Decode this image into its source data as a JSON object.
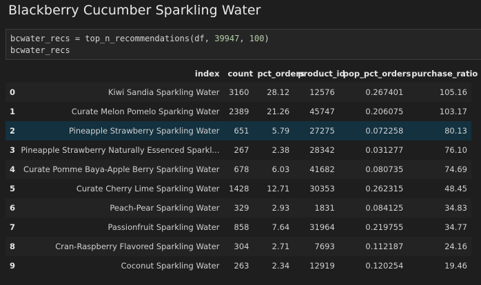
{
  "notebook": {
    "heading": "Blackberry Cucumber Sparkling Water",
    "code": {
      "line1_var": "bcwater_recs = top_n_recommendations(df, ",
      "line1_arg1": "39947",
      "line1_sep": ", ",
      "line1_arg2": "100",
      "line1_end": ")",
      "line2": "bcwater_recs"
    },
    "output": {
      "columns": [
        "",
        "index",
        "count",
        "pct_orders",
        "product_id",
        "pop_pct_orders",
        "purchase_ratio"
      ],
      "highlighted_row": 2,
      "rows": [
        {
          "i": "0",
          "index": "Kiwi Sandia Sparkling Water",
          "count": "3160",
          "pct_orders": "28.12",
          "product_id": "12576",
          "pop_pct_orders": "0.267401",
          "purchase_ratio": "105.16"
        },
        {
          "i": "1",
          "index": "Curate Melon Pomelo Sparking Water",
          "count": "2389",
          "pct_orders": "21.26",
          "product_id": "45747",
          "pop_pct_orders": "0.206075",
          "purchase_ratio": "103.17"
        },
        {
          "i": "2",
          "index": "Pineapple Strawberry Sparkling Water",
          "count": "651",
          "pct_orders": "5.79",
          "product_id": "27275",
          "pop_pct_orders": "0.072258",
          "purchase_ratio": "80.13"
        },
        {
          "i": "3",
          "index": "Pineapple Strawberry Naturally Essenced Sparkl...",
          "count": "267",
          "pct_orders": "2.38",
          "product_id": "28342",
          "pop_pct_orders": "0.031277",
          "purchase_ratio": "76.10"
        },
        {
          "i": "4",
          "index": "Curate Pomme Baya-Apple Berry Sparkling Water",
          "count": "678",
          "pct_orders": "6.03",
          "product_id": "41682",
          "pop_pct_orders": "0.080735",
          "purchase_ratio": "74.69"
        },
        {
          "i": "5",
          "index": "Curate Cherry Lime Sparkling Water",
          "count": "1428",
          "pct_orders": "12.71",
          "product_id": "30353",
          "pop_pct_orders": "0.262315",
          "purchase_ratio": "48.45"
        },
        {
          "i": "6",
          "index": "Peach-Pear Sparkling Water",
          "count": "329",
          "pct_orders": "2.93",
          "product_id": "1831",
          "pop_pct_orders": "0.084125",
          "purchase_ratio": "34.83"
        },
        {
          "i": "7",
          "index": "Passionfruit Sparkling Water",
          "count": "858",
          "pct_orders": "7.64",
          "product_id": "31964",
          "pop_pct_orders": "0.219755",
          "purchase_ratio": "34.77"
        },
        {
          "i": "8",
          "index": "Cran-Raspberry Flavored Sparkling Water",
          "count": "304",
          "pct_orders": "2.71",
          "product_id": "7693",
          "pop_pct_orders": "0.112187",
          "purchase_ratio": "24.16"
        },
        {
          "i": "9",
          "index": "Coconut Sparkling Water",
          "count": "263",
          "pct_orders": "2.34",
          "product_id": "12919",
          "pop_pct_orders": "0.120254",
          "purchase_ratio": "19.46"
        }
      ]
    }
  },
  "colors": {
    "background": "#1e1e1e",
    "highlight_row": "#13313f",
    "number_literal": "#b5cea8"
  }
}
